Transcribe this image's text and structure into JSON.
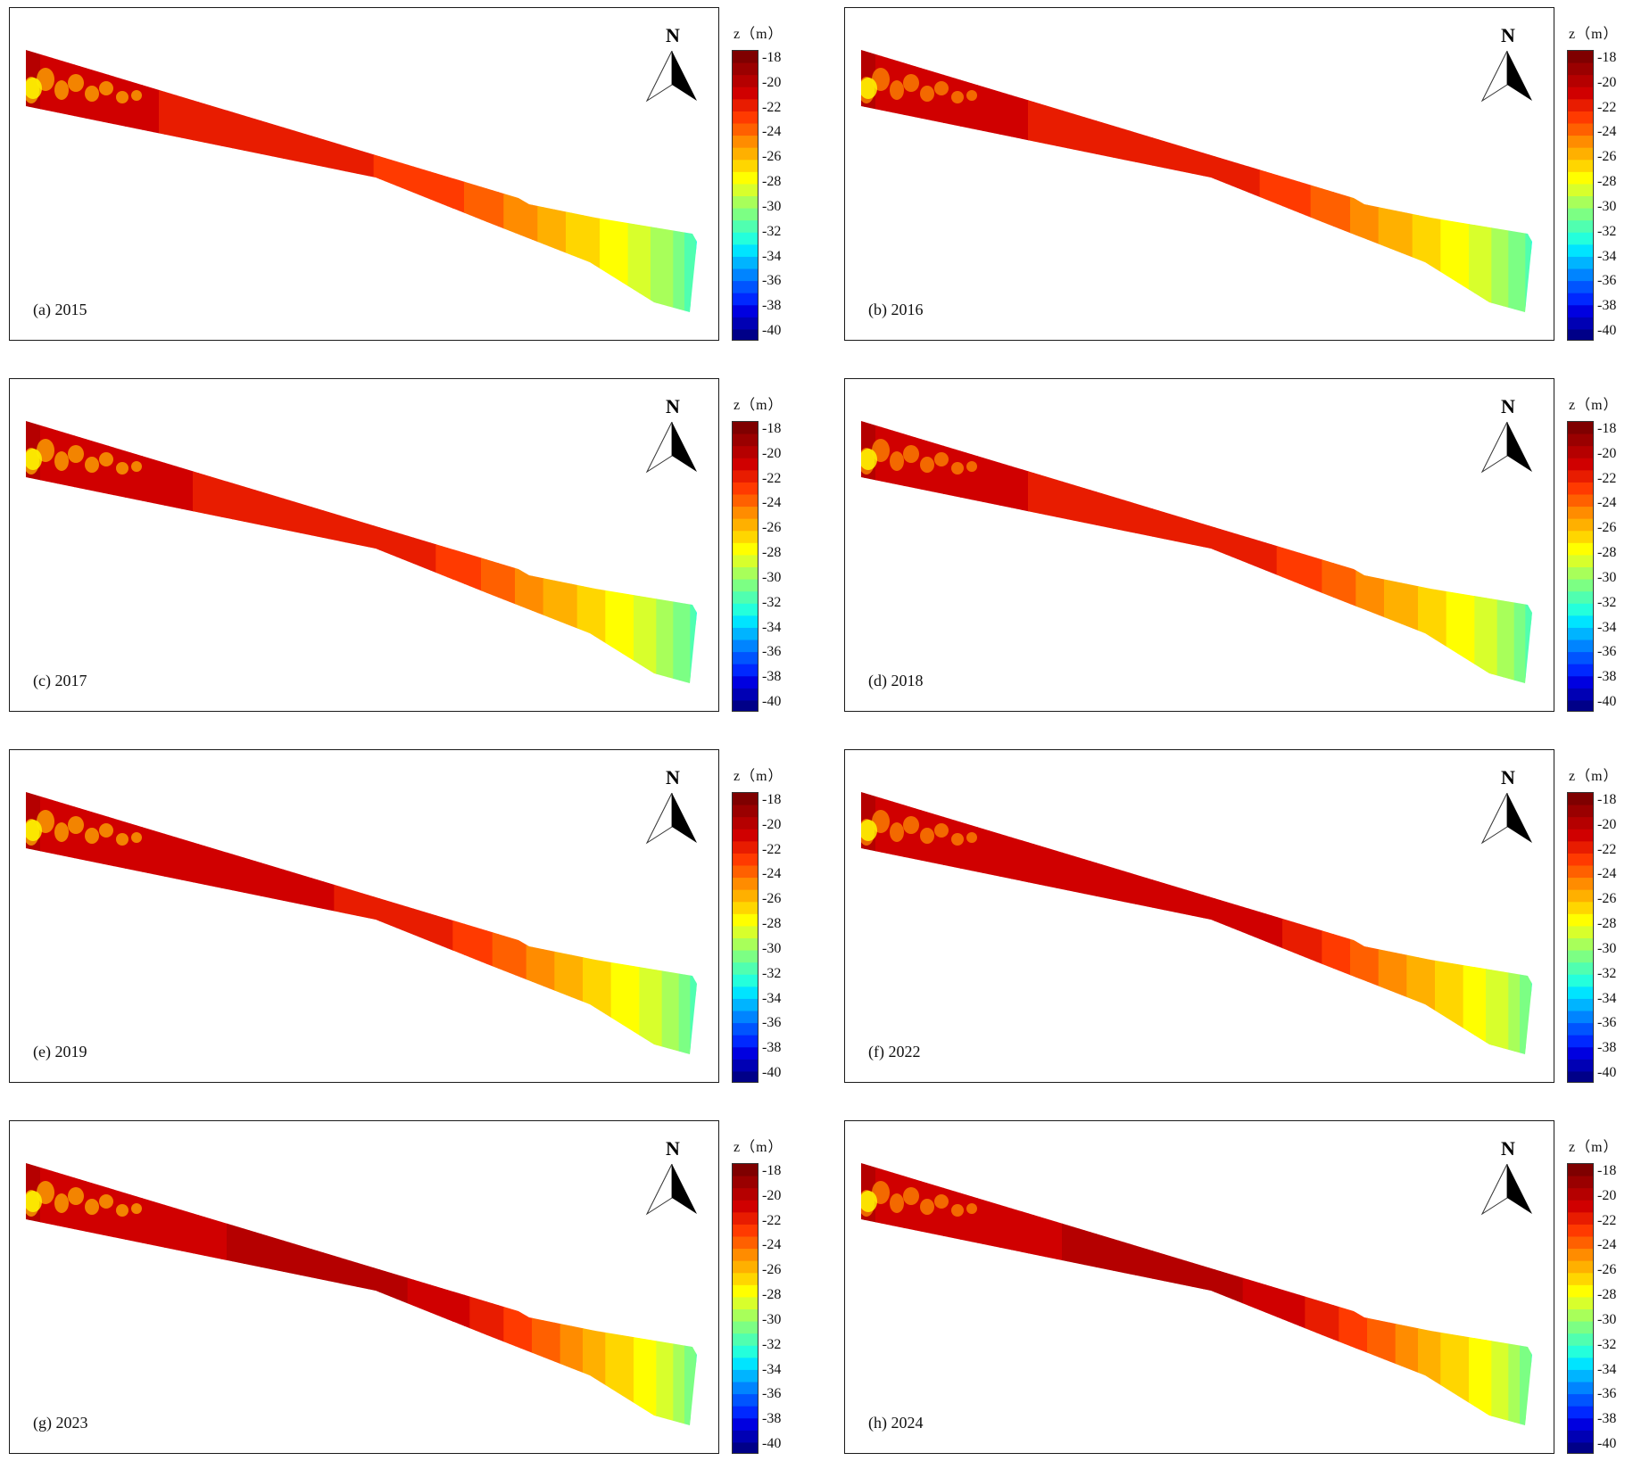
{
  "legend": {
    "title": "z（m）",
    "ticks": [
      "-18",
      "-20",
      "-22",
      "-24",
      "-26",
      "-28",
      "-30",
      "-32",
      "-34",
      "-36",
      "-38",
      "-40"
    ],
    "colors": [
      "#7f0000",
      "#9a0000",
      "#b50000",
      "#d00000",
      "#e81c00",
      "#ff3a00",
      "#ff6000",
      "#ff8c00",
      "#ffb000",
      "#ffd600",
      "#ffff00",
      "#d8ff2c",
      "#a8ff5a",
      "#7cff84",
      "#50ffb0",
      "#24ffdc",
      "#00e4ff",
      "#00b4ff",
      "#0084ff",
      "#0054ff",
      "#0028ff",
      "#0000e0",
      "#0000b4",
      "#000088"
    ]
  },
  "north": "N",
  "panels": [
    {
      "label": "(a) 2015",
      "profile": [
        [
          0,
          2
        ],
        [
          0.05,
          3
        ],
        [
          0.12,
          3.3
        ],
        [
          0.2,
          3.5
        ],
        [
          0.3,
          3.7
        ],
        [
          0.38,
          4
        ],
        [
          0.46,
          4.3
        ],
        [
          0.55,
          4.6
        ],
        [
          0.62,
          5
        ],
        [
          0.68,
          6
        ],
        [
          0.74,
          7
        ],
        [
          0.8,
          8.5
        ],
        [
          0.86,
          9.8
        ],
        [
          0.92,
          11.2
        ],
        [
          0.97,
          13
        ],
        [
          1,
          15
        ]
      ]
    },
    {
      "label": "(b) 2016",
      "profile": [
        [
          0,
          2
        ],
        [
          0.05,
          3
        ],
        [
          0.12,
          3.2
        ],
        [
          0.2,
          3.4
        ],
        [
          0.3,
          3.6
        ],
        [
          0.38,
          3.8
        ],
        [
          0.46,
          3.9
        ],
        [
          0.55,
          4.2
        ],
        [
          0.62,
          4.7
        ],
        [
          0.68,
          5.7
        ],
        [
          0.74,
          6.8
        ],
        [
          0.8,
          8.2
        ],
        [
          0.86,
          9.6
        ],
        [
          0.92,
          11
        ],
        [
          0.97,
          12.8
        ],
        [
          1,
          15
        ]
      ]
    },
    {
      "label": "(c) 2017",
      "profile": [
        [
          0,
          2
        ],
        [
          0.05,
          3
        ],
        [
          0.12,
          3.2
        ],
        [
          0.2,
          3.4
        ],
        [
          0.3,
          3.6
        ],
        [
          0.38,
          3.6
        ],
        [
          0.46,
          3.8
        ],
        [
          0.55,
          4.1
        ],
        [
          0.62,
          4.6
        ],
        [
          0.68,
          5.6
        ],
        [
          0.74,
          6.8
        ],
        [
          0.8,
          8.2
        ],
        [
          0.86,
          9.6
        ],
        [
          0.92,
          11
        ],
        [
          0.97,
          12.8
        ],
        [
          1,
          15
        ]
      ]
    },
    {
      "label": "(d) 2018",
      "profile": [
        [
          0,
          2
        ],
        [
          0.05,
          3
        ],
        [
          0.12,
          3.2
        ],
        [
          0.2,
          3.4
        ],
        [
          0.3,
          3.6
        ],
        [
          0.38,
          3.6
        ],
        [
          0.46,
          3.7
        ],
        [
          0.55,
          4
        ],
        [
          0.62,
          4.5
        ],
        [
          0.68,
          5.5
        ],
        [
          0.74,
          6.6
        ],
        [
          0.8,
          8
        ],
        [
          0.86,
          9.4
        ],
        [
          0.92,
          10.8
        ],
        [
          0.97,
          12.5
        ],
        [
          1,
          14.5
        ]
      ]
    },
    {
      "label": "(e) 2019",
      "profile": [
        [
          0,
          2
        ],
        [
          0.05,
          3
        ],
        [
          0.12,
          3.2
        ],
        [
          0.2,
          3.4
        ],
        [
          0.3,
          3.5
        ],
        [
          0.38,
          3.4
        ],
        [
          0.46,
          3.5
        ],
        [
          0.55,
          3.8
        ],
        [
          0.62,
          4.3
        ],
        [
          0.68,
          5.3
        ],
        [
          0.74,
          6.5
        ],
        [
          0.8,
          7.9
        ],
        [
          0.86,
          9.3
        ],
        [
          0.92,
          10.7
        ],
        [
          0.97,
          12.5
        ],
        [
          1,
          14.5
        ]
      ]
    },
    {
      "label": "(f) 2022",
      "profile": [
        [
          0,
          2
        ],
        [
          0.05,
          3
        ],
        [
          0.12,
          3.2
        ],
        [
          0.2,
          3.2
        ],
        [
          0.3,
          3
        ],
        [
          0.38,
          2.8
        ],
        [
          0.46,
          2.8
        ],
        [
          0.55,
          3
        ],
        [
          0.62,
          3.4
        ],
        [
          0.68,
          4.5
        ],
        [
          0.74,
          5.8
        ],
        [
          0.8,
          7.2
        ],
        [
          0.86,
          8.8
        ],
        [
          0.92,
          10.2
        ],
        [
          0.97,
          12
        ],
        [
          1,
          14
        ]
      ]
    },
    {
      "label": "(g) 2023",
      "profile": [
        [
          0,
          2
        ],
        [
          0.05,
          3
        ],
        [
          0.12,
          3.1
        ],
        [
          0.2,
          3.1
        ],
        [
          0.3,
          2.5
        ],
        [
          0.38,
          2
        ],
        [
          0.46,
          2.1
        ],
        [
          0.55,
          2.4
        ],
        [
          0.62,
          2.8
        ],
        [
          0.68,
          3.8
        ],
        [
          0.74,
          5.2
        ],
        [
          0.8,
          6.8
        ],
        [
          0.86,
          8.5
        ],
        [
          0.92,
          10
        ],
        [
          0.97,
          12
        ],
        [
          1,
          14.5
        ]
      ]
    },
    {
      "label": "(h) 2024",
      "profile": [
        [
          0,
          2
        ],
        [
          0.05,
          3
        ],
        [
          0.12,
          3.1
        ],
        [
          0.2,
          3.1
        ],
        [
          0.3,
          2.5
        ],
        [
          0.38,
          2
        ],
        [
          0.46,
          2.1
        ],
        [
          0.55,
          2.4
        ],
        [
          0.62,
          2.8
        ],
        [
          0.68,
          3.8
        ],
        [
          0.74,
          5.2
        ],
        [
          0.8,
          6.8
        ],
        [
          0.86,
          8.5
        ],
        [
          0.92,
          10
        ],
        [
          0.97,
          12
        ],
        [
          1,
          14.5
        ]
      ]
    }
  ]
}
